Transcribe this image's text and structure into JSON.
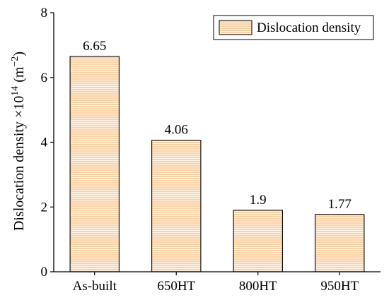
{
  "chart_data": {
    "type": "bar",
    "categories": [
      "As-built",
      "650HT",
      "800HT",
      "950HT"
    ],
    "series": [
      {
        "name": "Dislocation density",
        "values": [
          6.65,
          4.06,
          1.9,
          1.77
        ]
      }
    ],
    "data_labels": [
      "6.65",
      "4.06",
      "1.9",
      "1.77"
    ],
    "ylabel_parts": {
      "main": "Dislocation density ×10",
      "exp1": "14",
      "mid": " (m",
      "exp2": "−2",
      "end": ")"
    },
    "ylim": [
      0,
      8
    ],
    "yticks": [
      0,
      2,
      4,
      6,
      8
    ],
    "ytick_labels": [
      "0",
      "2",
      "4",
      "6",
      "8"
    ],
    "grid": false,
    "legend_position": "top-right",
    "colors": {
      "bar_fill": "#fcd3a8",
      "bar_stripe": "#ffffff",
      "bar_stroke": "#000000"
    }
  }
}
